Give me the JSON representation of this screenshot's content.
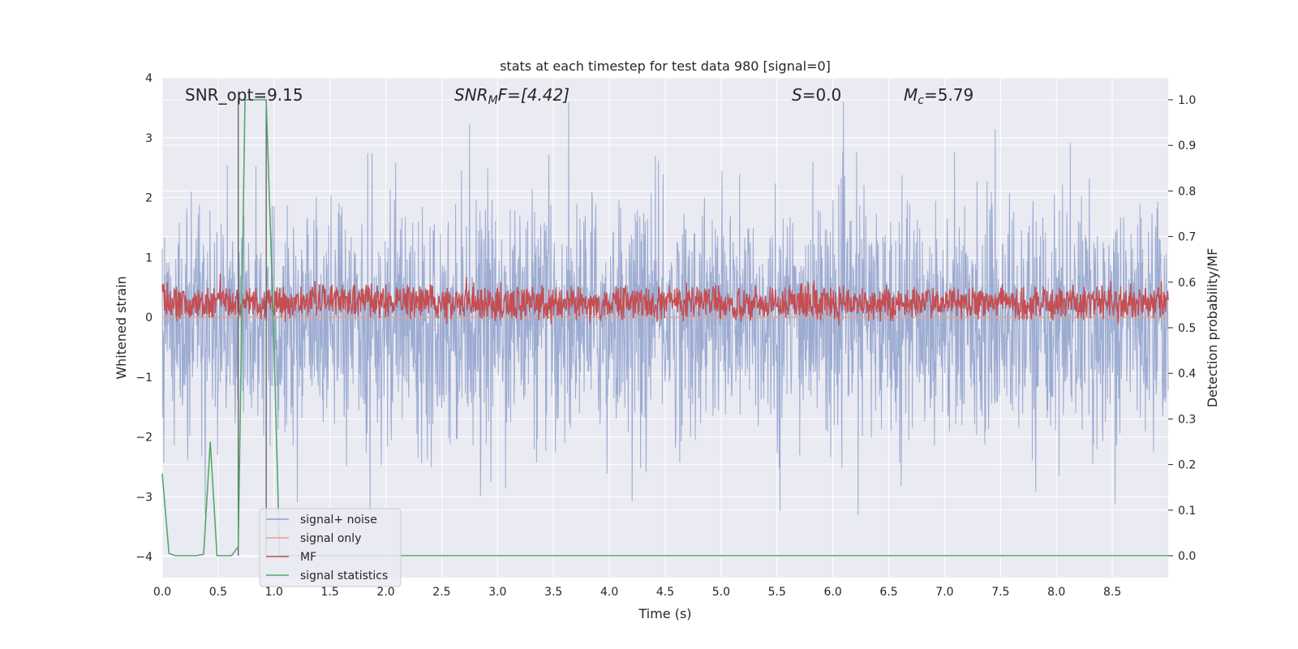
{
  "chart_data": {
    "type": "line",
    "title": "stats at each timestep for test data 980 [signal=0]",
    "xlabel": "Time (s)",
    "ylabel": "Whitened strain",
    "ylabel_right": "Detection probability/MF",
    "xlim": [
      0.0,
      9.0
    ],
    "ylim": [
      -4.35,
      4.0
    ],
    "ylim_right": [
      -0.048,
      1.048
    ],
    "x_ticks": [
      "0.0",
      "0.5",
      "1.0",
      "1.5",
      "2.0",
      "2.5",
      "3.0",
      "3.5",
      "4.0",
      "4.5",
      "5.0",
      "5.5",
      "6.0",
      "6.5",
      "7.0",
      "7.5",
      "8.0",
      "8.5"
    ],
    "y_ticks": [
      "4",
      "3",
      "2",
      "1",
      "0",
      "−1",
      "−2",
      "−3",
      "−4"
    ],
    "y_ticks_right": [
      "1.0",
      "0.9",
      "0.8",
      "0.7",
      "0.6",
      "0.5",
      "0.4",
      "0.3",
      "0.2",
      "0.1",
      "0.0"
    ],
    "grid": true,
    "legend_position": "lower-left",
    "annotations": {
      "snr_opt": "SNR_opt=9.15",
      "snr_mf_main": "SNR",
      "snr_mf_sub": "M",
      "snr_mf_rest": "F=[4.42]",
      "s_main": "S",
      "s_rest": "=0.0",
      "mc_main": "M",
      "mc_sub": "c",
      "mc_rest": "=5.79"
    },
    "series": [
      {
        "name": "signal+ noise",
        "axis": "left",
        "color": "#8da0cb",
        "description_range": [
          -3.3,
          3.6
        ],
        "typical_range": [
          -1.9,
          2.1
        ]
      },
      {
        "name": "signal only",
        "axis": "left",
        "color": "#e8a288",
        "x": [
          0.0,
          9.0
        ],
        "values": [
          0.0,
          0.0
        ]
      },
      {
        "name": "MF",
        "axis": "right",
        "color": "#c44e52",
        "typical_range": [
          0.52,
          0.62
        ]
      },
      {
        "name": "signal statistics",
        "axis": "right",
        "color": "#55a868",
        "x": [
          0.0,
          0.06,
          0.12,
          0.3,
          0.37,
          0.43,
          0.49,
          0.55,
          0.62,
          0.68,
          0.74,
          0.93,
          0.99,
          1.05,
          1.11,
          9.0
        ],
        "values": [
          0.18,
          0.005,
          0.0,
          0.0,
          0.003,
          0.25,
          0.0,
          0.0,
          0.0,
          0.02,
          1.0,
          1.0,
          0.55,
          0.0,
          0.0,
          0.0
        ]
      }
    ],
    "vlines": [
      0.68,
      0.93
    ]
  },
  "legend": {
    "items": [
      {
        "label": "signal+ noise",
        "color": "#8da0cb"
      },
      {
        "label": "signal only",
        "color": "#e8a288"
      },
      {
        "label": "MF",
        "color": "#c44e52"
      },
      {
        "label": "signal statistics",
        "color": "#55a868"
      }
    ]
  }
}
